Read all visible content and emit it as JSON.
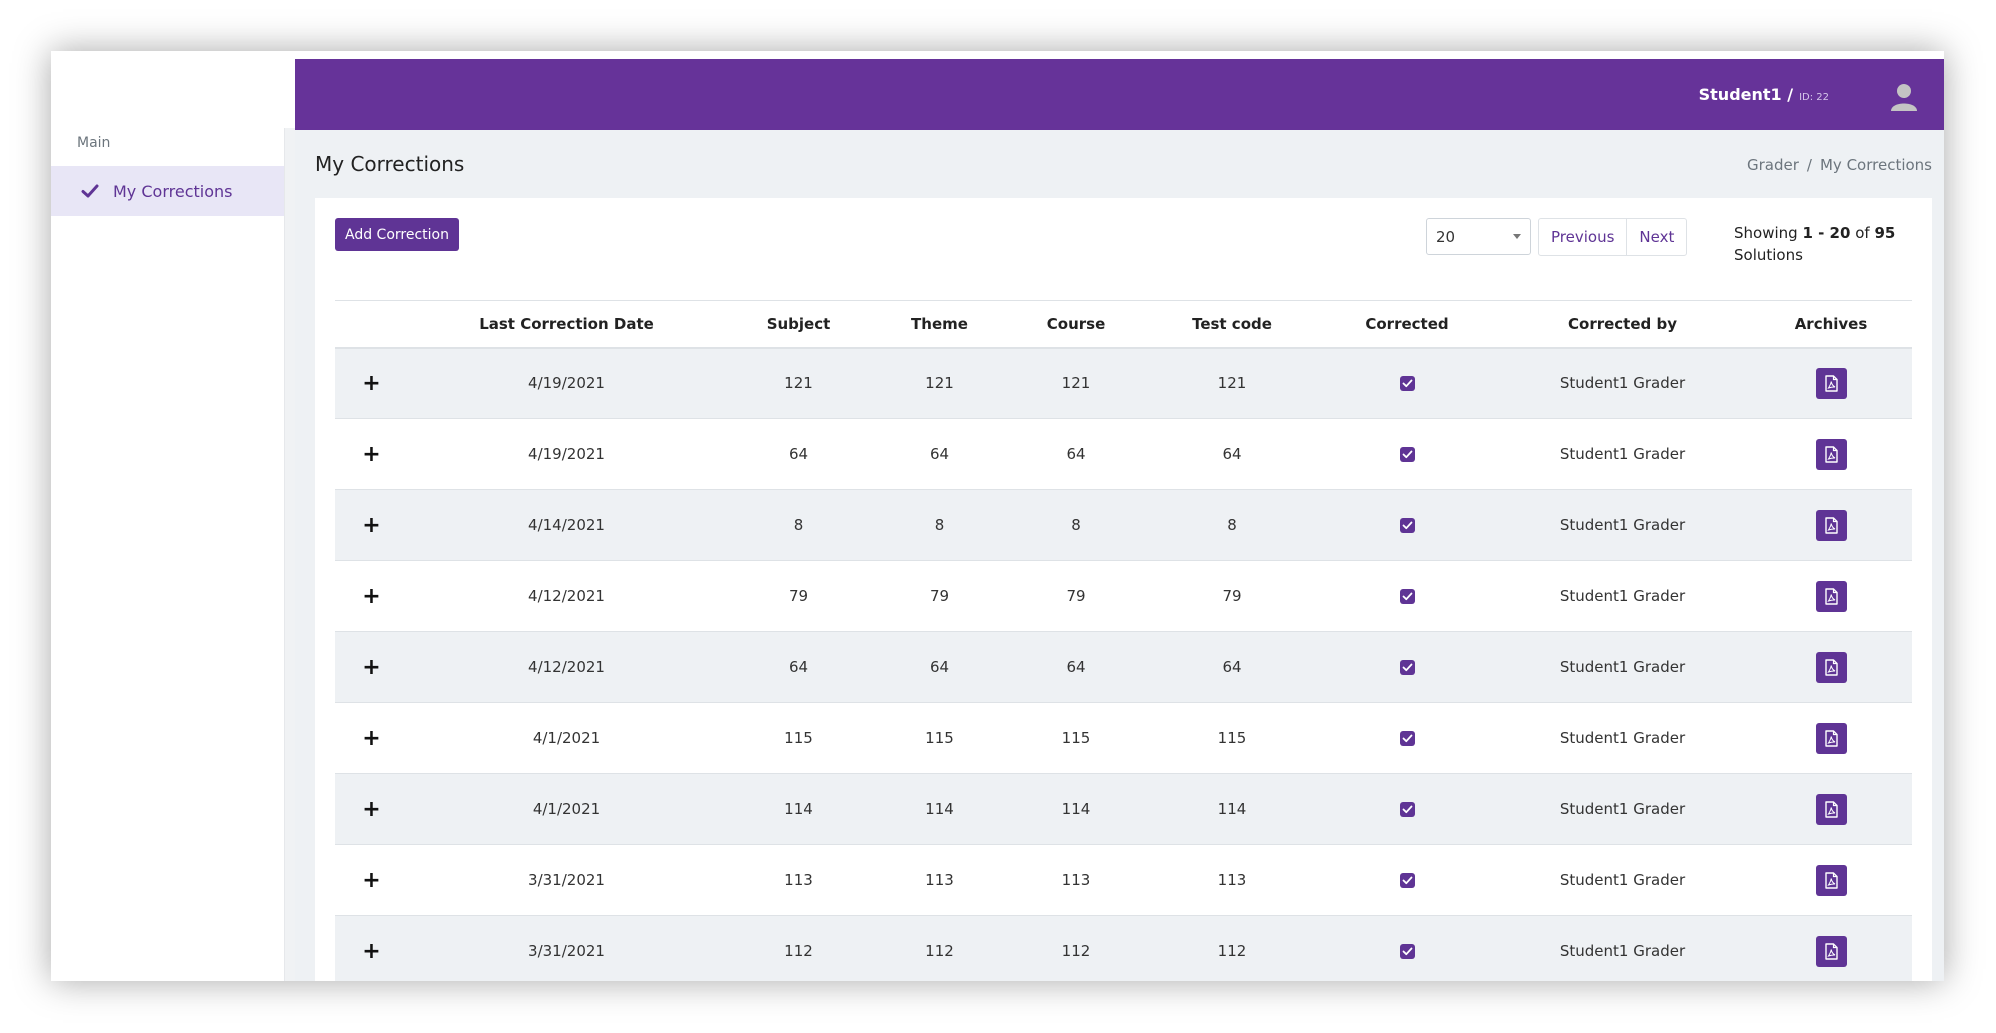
{
  "sidebar": {
    "section_label": "Main",
    "items": [
      {
        "label": "My Corrections",
        "icon": "check-icon",
        "active": true
      }
    ]
  },
  "header": {
    "user_name": "Student1 /",
    "user_id": "ID: 22",
    "avatar_icon": "user-avatar-icon"
  },
  "page": {
    "title": "My Corrections",
    "breadcrumb": [
      "Grader",
      "My Corrections"
    ],
    "breadcrumb_separator": "/"
  },
  "toolbar": {
    "add_label": "Add Correction",
    "page_size": "20",
    "prev_label": "Previous",
    "next_label": "Next",
    "showing_prefix": "Showing",
    "range": "1 - 20",
    "of_label": "of",
    "total": "95",
    "unit": "Solutions"
  },
  "table": {
    "headers": [
      "",
      "Last Correction Date",
      "Subject",
      "Theme",
      "Course",
      "Test code",
      "Corrected",
      "Corrected by",
      "Archives"
    ],
    "rows": [
      {
        "expand": "+",
        "date": "4/19/2021",
        "subject": "121",
        "theme": "121",
        "course": "121",
        "test_code": "121",
        "corrected": true,
        "corrected_by": "Student1 Grader"
      },
      {
        "expand": "+",
        "date": "4/19/2021",
        "subject": "64",
        "theme": "64",
        "course": "64",
        "test_code": "64",
        "corrected": true,
        "corrected_by": "Student1 Grader"
      },
      {
        "expand": "+",
        "date": "4/14/2021",
        "subject": "8",
        "theme": "8",
        "course": "8",
        "test_code": "8",
        "corrected": true,
        "corrected_by": "Student1 Grader"
      },
      {
        "expand": "+",
        "date": "4/12/2021",
        "subject": "79",
        "theme": "79",
        "course": "79",
        "test_code": "79",
        "corrected": true,
        "corrected_by": "Student1 Grader"
      },
      {
        "expand": "+",
        "date": "4/12/2021",
        "subject": "64",
        "theme": "64",
        "course": "64",
        "test_code": "64",
        "corrected": true,
        "corrected_by": "Student1 Grader"
      },
      {
        "expand": "+",
        "date": "4/1/2021",
        "subject": "115",
        "theme": "115",
        "course": "115",
        "test_code": "115",
        "corrected": true,
        "corrected_by": "Student1 Grader"
      },
      {
        "expand": "+",
        "date": "4/1/2021",
        "subject": "114",
        "theme": "114",
        "course": "114",
        "test_code": "114",
        "corrected": true,
        "corrected_by": "Student1 Grader"
      },
      {
        "expand": "+",
        "date": "3/31/2021",
        "subject": "113",
        "theme": "113",
        "course": "113",
        "test_code": "113",
        "corrected": true,
        "corrected_by": "Student1 Grader"
      },
      {
        "expand": "+",
        "date": "3/31/2021",
        "subject": "112",
        "theme": "112",
        "course": "112",
        "test_code": "112",
        "corrected": true,
        "corrected_by": "Student1 Grader"
      }
    ]
  },
  "colors": {
    "brand": "#663399",
    "accent": "#5f3495",
    "active_bg": "#e8e6f6"
  }
}
